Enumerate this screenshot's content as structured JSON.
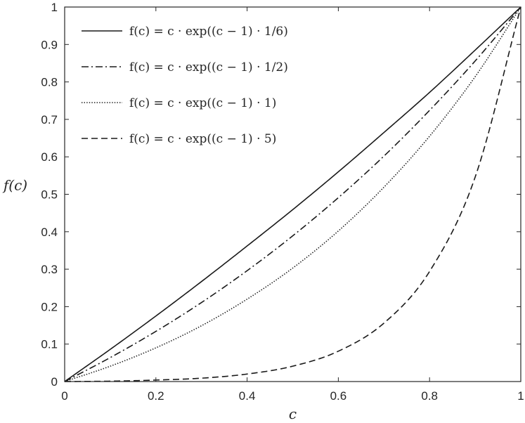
{
  "chart_data": {
    "type": "line",
    "title": "",
    "xlabel": "c",
    "ylabel": "f(c)",
    "xlim": [
      0,
      1
    ],
    "ylim": [
      0,
      1
    ],
    "grid": false,
    "legend_position": "top-left",
    "xticks": [
      {
        "value": 0,
        "label": "0"
      },
      {
        "value": 0.2,
        "label": "0.2"
      },
      {
        "value": 0.4,
        "label": "0.4"
      },
      {
        "value": 0.6,
        "label": "0.6"
      },
      {
        "value": 0.8,
        "label": "0.8"
      },
      {
        "value": 1,
        "label": "1"
      }
    ],
    "yticks": [
      {
        "value": 0,
        "label": "0"
      },
      {
        "value": 0.1,
        "label": "0.1"
      },
      {
        "value": 0.2,
        "label": "0.2"
      },
      {
        "value": 0.3,
        "label": "0.3"
      },
      {
        "value": 0.4,
        "label": "0.4"
      },
      {
        "value": 0.5,
        "label": "0.5"
      },
      {
        "value": 0.6,
        "label": "0.6"
      },
      {
        "value": 0.7,
        "label": "0.7"
      },
      {
        "value": 0.8,
        "label": "0.8"
      },
      {
        "value": 0.9,
        "label": "0.9"
      },
      {
        "value": 1,
        "label": "1"
      }
    ],
    "x": [
      0,
      0.1,
      0.2,
      0.3,
      0.4,
      0.5,
      0.6,
      0.7,
      0.8,
      0.9,
      1.0
    ],
    "series": [
      {
        "name": "f(c) = c · exp((c − 1) · 1/6)",
        "style": "solid",
        "values": [
          0,
          0.086,
          0.175,
          0.267,
          0.362,
          0.459,
          0.56,
          0.665,
          0.772,
          0.885,
          1.0
        ]
      },
      {
        "name": "f(c) = c · exp((c − 1) · 1/2)",
        "style": "dashdot",
        "values": [
          0,
          0.064,
          0.134,
          0.211,
          0.296,
          0.389,
          0.491,
          0.602,
          0.724,
          0.856,
          1.0
        ]
      },
      {
        "name": "f(c) = c · exp((c − 1) · 1)",
        "style": "dotted",
        "values": [
          0,
          0.041,
          0.09,
          0.149,
          0.22,
          0.303,
          0.402,
          0.519,
          0.655,
          0.814,
          1.0
        ]
      },
      {
        "name": "f(c) = c · exp((c − 1) · 5)",
        "style": "dashed",
        "values": [
          0,
          0.001,
          0.004,
          0.009,
          0.02,
          0.041,
          0.081,
          0.156,
          0.294,
          0.546,
          1.0
        ]
      }
    ],
    "colors": {
      "line": "#1a1a1a",
      "axis": "#262626"
    }
  }
}
